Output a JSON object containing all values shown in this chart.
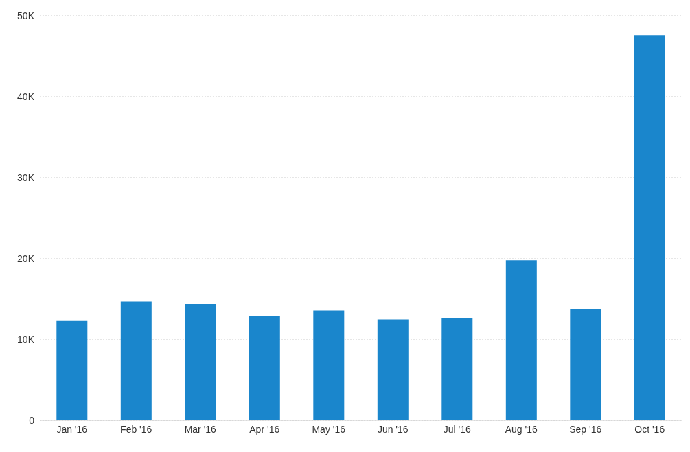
{
  "chart_data": {
    "type": "bar",
    "categories": [
      "Jan '16",
      "Feb '16",
      "Mar '16",
      "Apr '16",
      "May '16",
      "Jun '16",
      "Jul '16",
      "Aug '16",
      "Sep '16",
      "Oct '16"
    ],
    "values": [
      12300,
      14700,
      14400,
      12900,
      13600,
      12500,
      12700,
      19800,
      13800,
      47600
    ],
    "color": "#1a86cc",
    "ylim": [
      0,
      50000
    ],
    "yticks": [
      {
        "value": 0,
        "label": "0"
      },
      {
        "value": 10000,
        "label": "10K"
      },
      {
        "value": 20000,
        "label": "20K"
      },
      {
        "value": 30000,
        "label": "30K"
      },
      {
        "value": 40000,
        "label": "40K"
      },
      {
        "value": 50000,
        "label": "50K"
      }
    ],
    "grid": "y"
  }
}
